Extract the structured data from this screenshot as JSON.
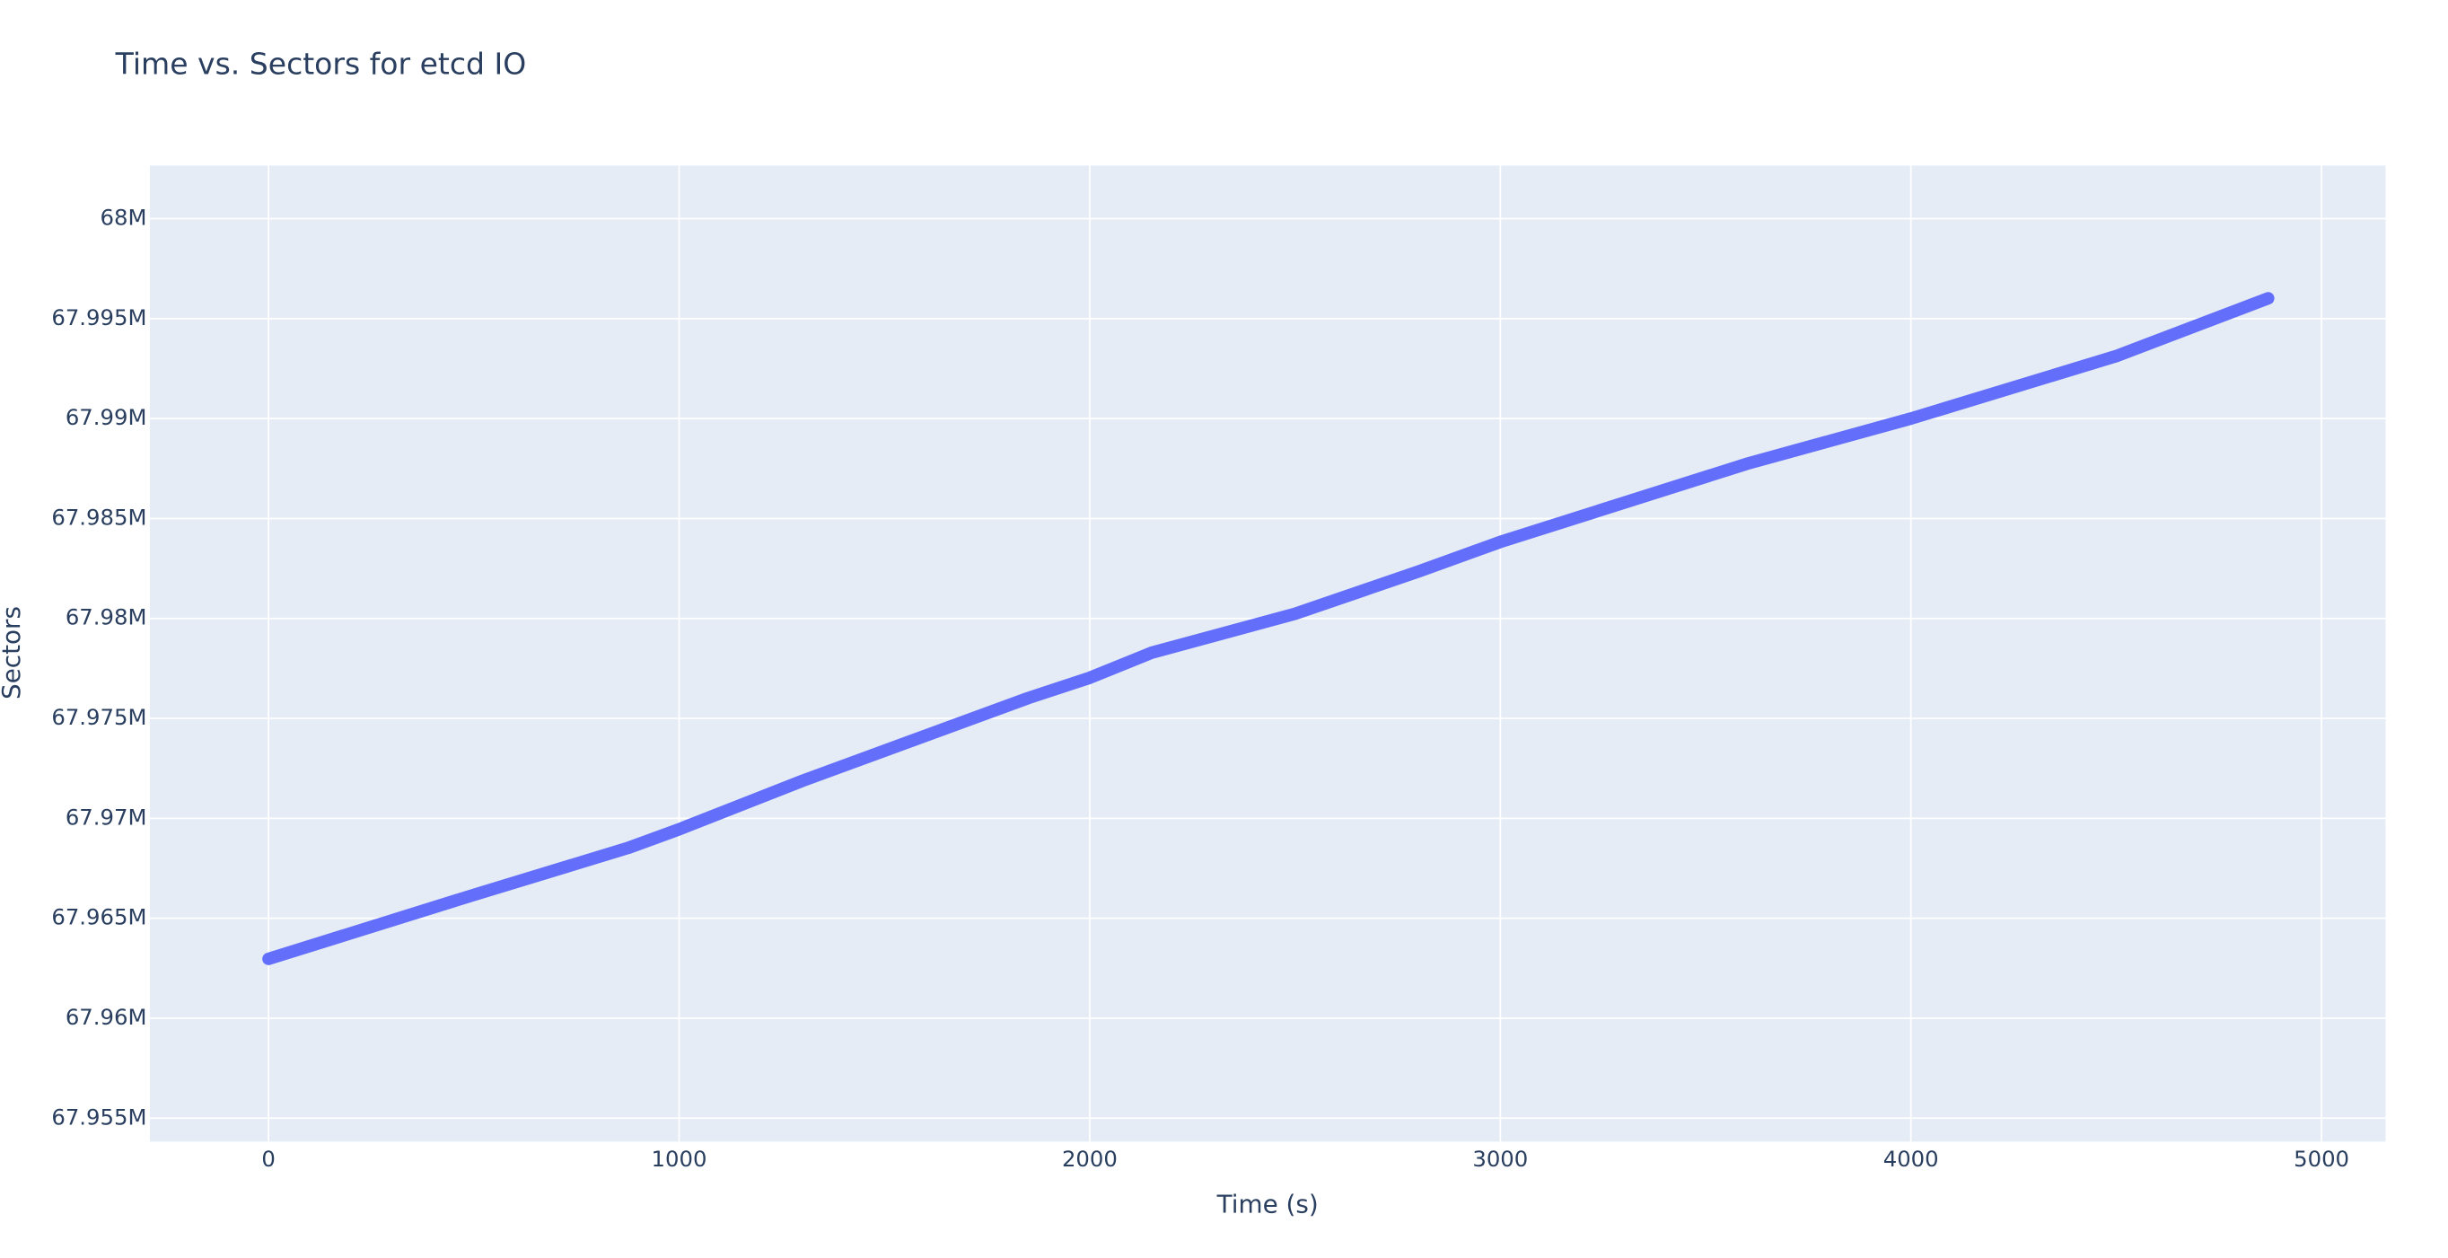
{
  "chart_data": {
    "type": "line",
    "title": "Time vs. Sectors for etcd IO",
    "x_label": "Time (s)",
    "y_label": "Sectors",
    "series": [
      {
        "color": "#636efa",
        "x": [
          0,
          500,
          875,
          1000,
          1300,
          1850,
          2000,
          2150,
          2500,
          2800,
          3000,
          3600,
          4000,
          4500,
          4870
        ],
        "values": [
          67962969,
          67966172,
          67968516,
          67969453,
          67971875,
          67976016,
          67977031,
          67978281,
          67980234,
          67982344,
          67983828,
          67987734,
          67990000,
          67993125,
          67996016
        ]
      }
    ],
    "xlim": [
      -289,
      5156
    ],
    "xticks": [
      0,
      1000,
      2000,
      3000,
      4000,
      5000
    ],
    "ylim": [
      67953828,
      68002656
    ],
    "yticks": [
      {
        "value": 67955000,
        "label": "67.955M"
      },
      {
        "value": 67960000,
        "label": "67.96M"
      },
      {
        "value": 67965000,
        "label": "67.965M"
      },
      {
        "value": 67970000,
        "label": "67.97M"
      },
      {
        "value": 67975000,
        "label": "67.975M"
      },
      {
        "value": 67980000,
        "label": "67.98M"
      },
      {
        "value": 67985000,
        "label": "67.985M"
      },
      {
        "value": 67990000,
        "label": "67.99M"
      },
      {
        "value": 67995000,
        "label": "67.995M"
      },
      {
        "value": 68000000,
        "label": "68M"
      }
    ],
    "grid": true
  }
}
